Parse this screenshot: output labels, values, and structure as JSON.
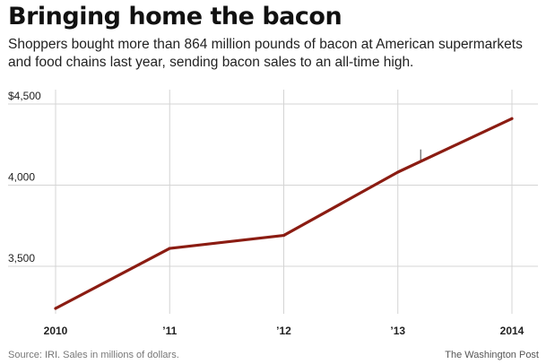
{
  "header": {
    "title": "Bringing home the bacon",
    "subtitle": "Shoppers bought more than 864 million pounds of bacon at American supermarkets and food chains last year, sending bacon sales to an all-time high."
  },
  "footer": {
    "source": "Source: IRI. Sales in millions of dollars.",
    "credit": "The Washington Post"
  },
  "colors": {
    "line": "#8b1c12",
    "grid": "#d4d4d4",
    "tick_text": "#222222"
  },
  "chart_data": {
    "type": "line",
    "x": [
      2010,
      2011,
      2012,
      2013,
      2014
    ],
    "x_tick_labels": [
      "2010",
      "’11",
      "’12",
      "’13",
      "2014"
    ],
    "series": [
      {
        "values": [
          3240,
          3610,
          3690,
          4080,
          4410
        ]
      }
    ],
    "y_ticks": [
      3500,
      4000,
      4500
    ],
    "y_tick_labels": [
      "3,500",
      "4,000",
      "$4,500"
    ],
    "ylim": [
      3240,
      4500
    ],
    "grid": true,
    "annotations": [
      {
        "type": "tick-mark",
        "x": 2013.2,
        "y_from": 4140,
        "y_to": 4220
      }
    ]
  }
}
